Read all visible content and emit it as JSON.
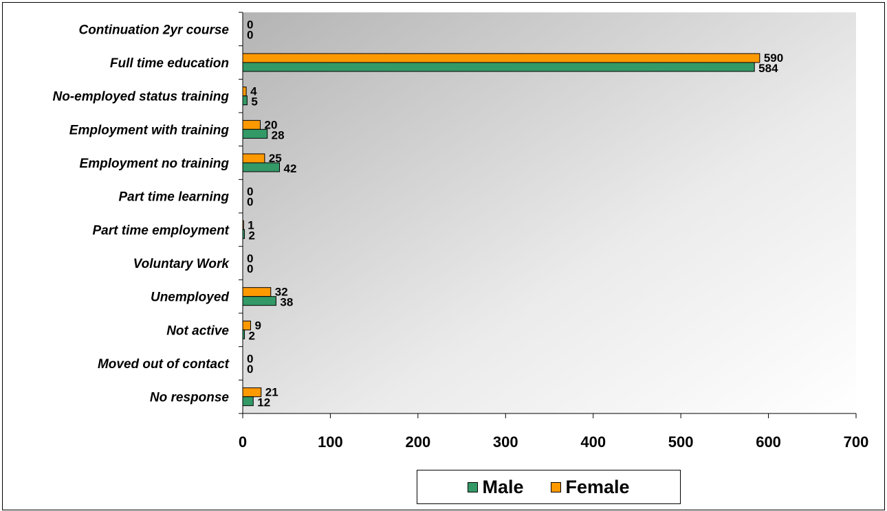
{
  "chart_data": {
    "type": "bar",
    "orientation": "horizontal",
    "categories": [
      "Continuation 2yr course",
      "Full time education",
      "No-employed status training",
      "Employment with training",
      "Employment no training",
      "Part time learning",
      "Part time employment",
      "Voluntary Work",
      "Unemployed",
      "Not active",
      "Moved out of contact",
      "No response"
    ],
    "series": [
      {
        "name": "Female",
        "color": "#FF9900",
        "values": [
          0,
          590,
          4,
          20,
          25,
          0,
          1,
          0,
          32,
          9,
          0,
          21
        ]
      },
      {
        "name": "Male",
        "color": "#339966",
        "values": [
          0,
          584,
          5,
          28,
          42,
          0,
          2,
          0,
          38,
          2,
          0,
          12
        ]
      }
    ],
    "xlim": [
      0,
      700
    ],
    "xticks": [
      "0",
      "100",
      "200",
      "300",
      "400",
      "500",
      "600",
      "700"
    ],
    "grid": false,
    "legend_position": "bottom",
    "plot_background": "gradient-gray-to-white",
    "legend": [
      {
        "name": "Male",
        "color": "#339966"
      },
      {
        "name": "Female",
        "color": "#FF9900"
      }
    ]
  }
}
